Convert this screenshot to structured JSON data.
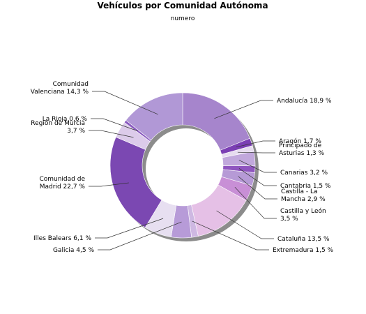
{
  "chart_data": {
    "type": "pie",
    "donut": true,
    "title": "Vehículos por Comunidad Autónoma",
    "subtitle": "numero",
    "unit": "%",
    "slices": [
      {
        "name": "Andalucía",
        "value": 18.9,
        "label": [
          "Andalucía 18,9 %"
        ],
        "color": "#a685cc"
      },
      {
        "name": "Aragón",
        "value": 1.7,
        "label": [
          "Aragón 1,7 %"
        ],
        "color": "#7b3fb4"
      },
      {
        "name": "Principado de Asturias",
        "value": 1.3,
        "label": [
          "Principado de",
          "Asturias 1,3 %"
        ],
        "color": "#e6dcef"
      },
      {
        "name": "Canarias",
        "value": 3.2,
        "label": [
          "Canarias 3,2 %"
        ],
        "color": "#c1a8dc"
      },
      {
        "name": "Cantabria",
        "value": 1.5,
        "label": [
          "Cantabria 1,5 %"
        ],
        "color": "#8f55bf"
      },
      {
        "name": "Castilla - La Mancha",
        "value": 2.9,
        "label": [
          "Castilla - La",
          "Mancha 2,9 %"
        ],
        "color": "#b69ad6"
      },
      {
        "name": "Castilla y León",
        "value": 3.5,
        "label": [
          "Castilla y León",
          "3,5 %"
        ],
        "color": "#c88fd6"
      },
      {
        "name": "Cataluña",
        "value": 13.5,
        "label": [
          "Cataluña 13,5 %"
        ],
        "color": "#e5c0e6"
      },
      {
        "name": "Extremadura",
        "value": 1.5,
        "label": [
          "Extremadura 1,5 %"
        ],
        "color": "#ceb8e2"
      },
      {
        "name": "Galicia",
        "value": 4.5,
        "label": [
          "Galicia 4,5 %"
        ],
        "color": "#b79bd8"
      },
      {
        "name": "Illes Balears",
        "value": 6.1,
        "label": [
          "Illes Balears 6,1 %"
        ],
        "color": "#e7dff1"
      },
      {
        "name": "Comunidad de Madrid",
        "value": 22.7,
        "label": [
          "Comunidad de",
          "Madrid 22,7 %"
        ],
        "color": "#7b48b2"
      },
      {
        "name": "Región de Murcia",
        "value": 3.7,
        "label": [
          "Región de Murcia",
          "3,7 %"
        ],
        "color": "#dccbea"
      },
      {
        "name": "La Rioja",
        "value": 0.6,
        "label": [
          "La Rioja 0,6 %"
        ],
        "color": "#8a5ac0"
      },
      {
        "name": "Comunidad Valenciana",
        "value": 14.3,
        "label": [
          "Comunidad",
          "Valenciana 14,3 %"
        ],
        "color": "#b198d6"
      }
    ]
  }
}
